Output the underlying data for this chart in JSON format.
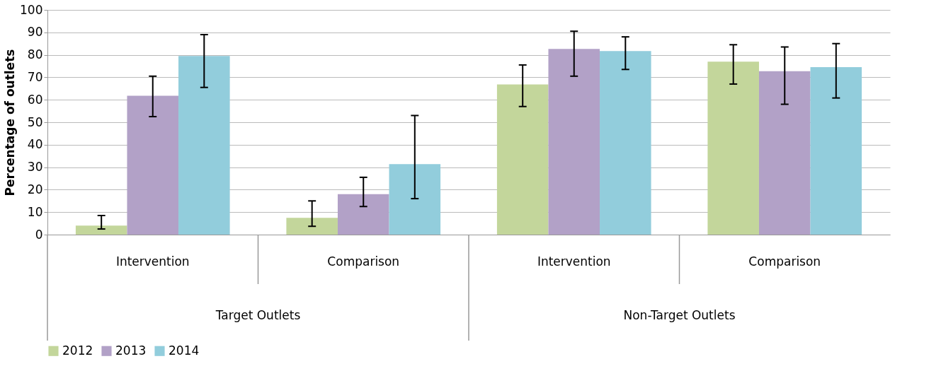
{
  "chart_data": {
    "type": "bar",
    "ylabel": "Percentage of outlets",
    "categories": [
      "Intervention",
      "Comparison",
      "Intervention",
      "Comparison"
    ],
    "series": [
      {
        "name": "2012",
        "color": "#c3d69b",
        "values": [
          4.0,
          7.5,
          66.8,
          77.0
        ],
        "errors": [
          [
            2.5,
            8.5
          ],
          [
            3.7,
            15.0
          ],
          [
            57.0,
            75.5
          ],
          [
            67.0,
            84.5
          ]
        ]
      },
      {
        "name": "2013",
        "color": "#b2a1c7",
        "values": [
          61.8,
          18.0,
          82.6,
          72.7
        ],
        "errors": [
          [
            52.5,
            70.5
          ],
          [
            12.5,
            25.5
          ],
          [
            70.5,
            90.5
          ],
          [
            58.0,
            83.5
          ]
        ]
      },
      {
        "name": "2014",
        "color": "#92cddc",
        "values": [
          79.5,
          31.4,
          81.7,
          74.5
        ],
        "errors": [
          [
            65.5,
            89.0
          ],
          [
            16.0,
            53.0
          ],
          [
            73.5,
            88.0
          ],
          [
            60.8,
            85.0
          ]
        ]
      }
    ],
    "annotations": [
      "Target Outlets",
      "Non-Target Outlets"
    ],
    "ylim": [
      0,
      100
    ],
    "yticks": [
      0,
      10,
      20,
      30,
      40,
      50,
      60,
      70,
      80,
      90,
      100
    ],
    "grid": "y",
    "legend": "bottom"
  }
}
